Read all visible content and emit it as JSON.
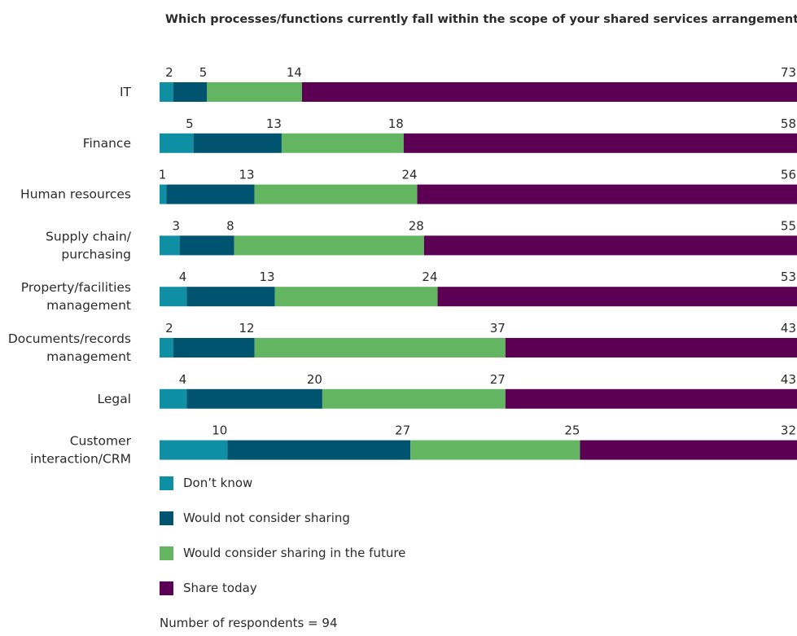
{
  "chart_data": {
    "type": "bar",
    "orientation": "horizontal",
    "stacked": true,
    "title": "Which processes/functions currently fall within the scope of your shared services arrangement?",
    "categories": [
      [
        "IT"
      ],
      [
        "Finance"
      ],
      [
        "Human resources"
      ],
      [
        "Supply chain/",
        "purchasing"
      ],
      [
        "Property/facilities",
        "management"
      ],
      [
        "Documents/records",
        "management"
      ],
      [
        "Legal"
      ],
      [
        "Customer",
        "interaction/CRM"
      ]
    ],
    "series": [
      {
        "name": "Don’t know",
        "color": "#0e8fa3",
        "values": [
          2,
          5,
          1,
          3,
          4,
          2,
          4,
          10
        ]
      },
      {
        "name": "Would not consider sharing",
        "color": "#005470",
        "values": [
          5,
          13,
          13,
          8,
          13,
          12,
          20,
          27
        ]
      },
      {
        "name": "Would consider sharing in the future",
        "color": "#63b562",
        "values": [
          14,
          18,
          24,
          28,
          24,
          37,
          27,
          25
        ]
      },
      {
        "name": "Share today",
        "color": "#5b0052",
        "values": [
          73,
          58,
          56,
          55,
          53,
          43,
          43,
          32
        ]
      }
    ],
    "legend_position": "bottom-left",
    "grid": false,
    "note": "Number of respondents = 94"
  }
}
